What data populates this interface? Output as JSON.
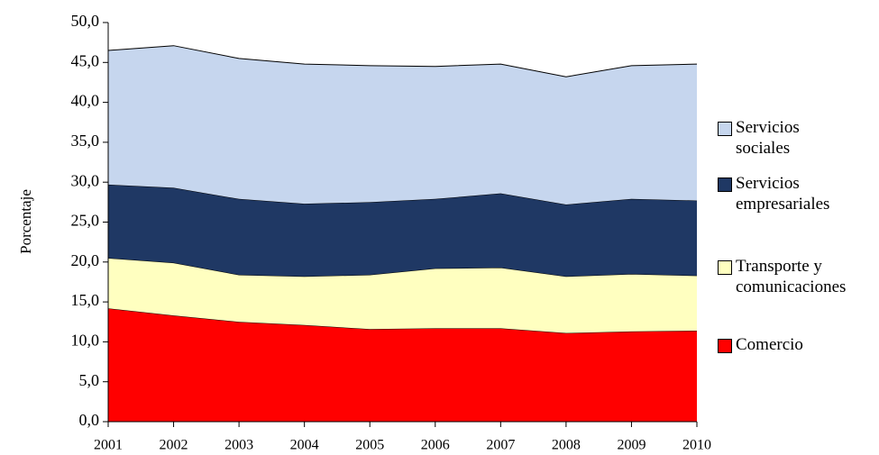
{
  "chart_data": {
    "type": "stacked_area",
    "y_axis_label": "Porcentaje",
    "categories": [
      "2001",
      "2002",
      "2003",
      "2004",
      "2005",
      "2006",
      "2007",
      "2008",
      "2009",
      "2010"
    ],
    "series": [
      {
        "name": "Comercio",
        "color": "#ff0000",
        "values": [
          14.2,
          13.3,
          12.5,
          12.1,
          11.6,
          11.7,
          11.7,
          11.1,
          11.3,
          11.4
        ]
      },
      {
        "name": "Transporte y comunicaciones",
        "color": "#ffffc0",
        "values": [
          6.3,
          6.6,
          5.9,
          6.1,
          6.8,
          7.5,
          7.6,
          7.1,
          7.2,
          6.9
        ]
      },
      {
        "name": "Servicios empresariales",
        "color": "#1f3864",
        "values": [
          9.2,
          9.4,
          9.5,
          9.1,
          9.1,
          8.7,
          9.3,
          9.0,
          9.4,
          9.4
        ]
      },
      {
        "name": "Servicios sociales",
        "color": "#c6d6ee",
        "values": [
          16.8,
          17.8,
          17.6,
          17.5,
          17.1,
          16.6,
          16.2,
          16.0,
          16.7,
          17.1
        ]
      }
    ],
    "ylim": [
      0,
      50
    ],
    "yticks": [
      {
        "value": 0,
        "label": "0,0"
      },
      {
        "value": 5,
        "label": "5,0"
      },
      {
        "value": 10,
        "label": "10,0"
      },
      {
        "value": 15,
        "label": "15,0"
      },
      {
        "value": 20,
        "label": "20,0"
      },
      {
        "value": 25,
        "label": "25,0"
      },
      {
        "value": 30,
        "label": "30,0"
      },
      {
        "value": 35,
        "label": "35,0"
      },
      {
        "value": 40,
        "label": "40,0"
      },
      {
        "value": 45,
        "label": "45,0"
      },
      {
        "value": 50,
        "label": "50,0"
      }
    ],
    "legend": "right"
  }
}
